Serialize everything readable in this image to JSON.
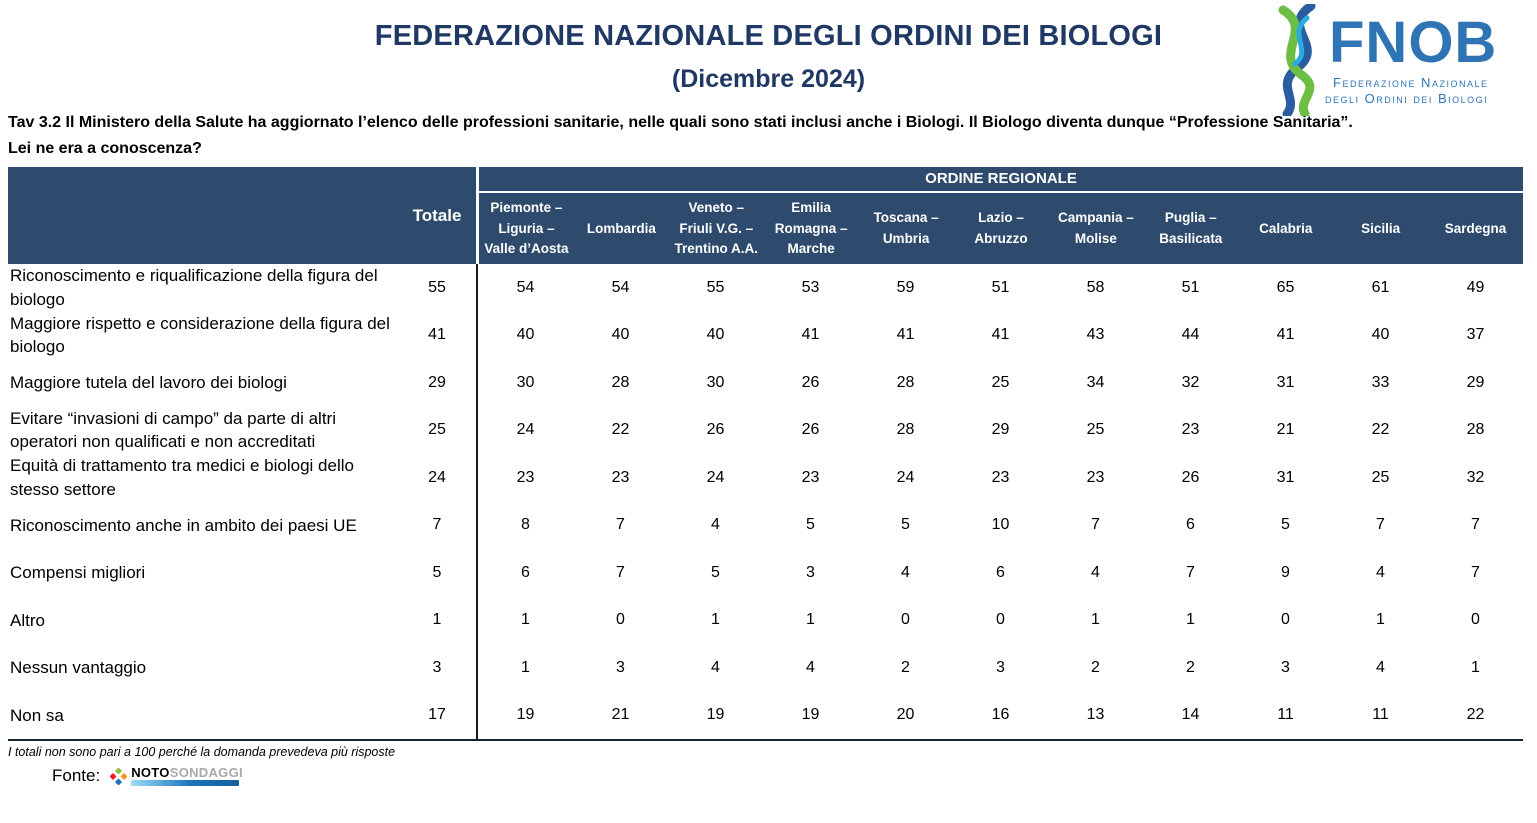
{
  "page": {
    "title": "FEDERAZIONE NAZIONALE DEGLI ORDINI DEI BIOLOGI",
    "subtitle": "(Dicembre 2024)"
  },
  "logo": {
    "acronym": "FNOB",
    "caption_line1": "Federazione Nazionale",
    "caption_line2": "degli Ordini dei Biologi"
  },
  "question": {
    "line1": "Tav 3.2 Il Ministero della Salute ha aggiornato l’elenco delle professioni sanitarie, nelle quali sono stati inclusi anche i Biologi. Il Biologo diventa dunque “Professione Sanitaria”.",
    "line2": "Lei ne era a conoscenza?"
  },
  "table": {
    "group_header": "ORDINE REGIONALE",
    "totale_label": "Totale",
    "region_columns": [
      "Piemonte –\nLiguria –\nValle d’Aosta",
      "Lombardia",
      "Veneto –\nFriuli V.G. –\nTrentino A.A.",
      "Emilia\nRomagna –\nMarche",
      "Toscana –\nUmbria",
      "Lazio –\nAbruzzo",
      "Campania –\nMolise",
      "Puglia –\nBasilicata",
      "Calabria",
      "Sicilia",
      "Sardegna"
    ],
    "rows": [
      {
        "label": "Riconoscimento e riqualificazione della figura del biologo",
        "totale": 55,
        "values": [
          54,
          54,
          55,
          53,
          59,
          51,
          58,
          51,
          65,
          61,
          49
        ]
      },
      {
        "label": "Maggiore rispetto e considerazione della figura del biologo",
        "totale": 41,
        "values": [
          40,
          40,
          40,
          41,
          41,
          41,
          43,
          44,
          41,
          40,
          37
        ]
      },
      {
        "label": "Maggiore tutela del lavoro dei biologi",
        "totale": 29,
        "values": [
          30,
          28,
          30,
          26,
          28,
          25,
          34,
          32,
          31,
          33,
          29
        ]
      },
      {
        "label": "Evitare “invasioni di campo” da parte di altri operatori non qualificati e non accreditati",
        "totale": 25,
        "values": [
          24,
          22,
          26,
          26,
          28,
          29,
          25,
          23,
          21,
          22,
          28
        ]
      },
      {
        "label": "Equità di trattamento tra medici e biologi dello stesso settore",
        "totale": 24,
        "values": [
          23,
          23,
          24,
          23,
          24,
          23,
          23,
          26,
          31,
          25,
          32
        ]
      },
      {
        "label": "Riconoscimento anche in ambito dei paesi UE",
        "totale": 7,
        "values": [
          8,
          7,
          4,
          5,
          5,
          10,
          7,
          6,
          5,
          7,
          7
        ]
      },
      {
        "label": "Compensi migliori",
        "totale": 5,
        "values": [
          6,
          7,
          5,
          3,
          4,
          6,
          4,
          7,
          9,
          4,
          7
        ]
      },
      {
        "label": "Altro",
        "totale": 1,
        "values": [
          1,
          0,
          1,
          1,
          0,
          0,
          1,
          1,
          0,
          1,
          0
        ]
      },
      {
        "label": "Nessun vantaggio",
        "totale": 3,
        "values": [
          1,
          3,
          4,
          4,
          2,
          3,
          2,
          2,
          3,
          4,
          1
        ]
      },
      {
        "label": "Non sa",
        "totale": 17,
        "values": [
          19,
          21,
          19,
          19,
          20,
          16,
          13,
          14,
          11,
          11,
          22
        ]
      }
    ]
  },
  "footer": {
    "note": "I totali non sono pari a 100 perché la domanda prevedeva più risposte",
    "fonte_label": "Fonte:",
    "source": {
      "brand_bold": "NOTO",
      "brand_light": "SONDAGGI"
    }
  },
  "colors": {
    "header_bg": "#2e4a6c",
    "title_navy": "#1f3864",
    "logo_blue": "#2f74b5",
    "logo_green": "#6cbe45"
  }
}
